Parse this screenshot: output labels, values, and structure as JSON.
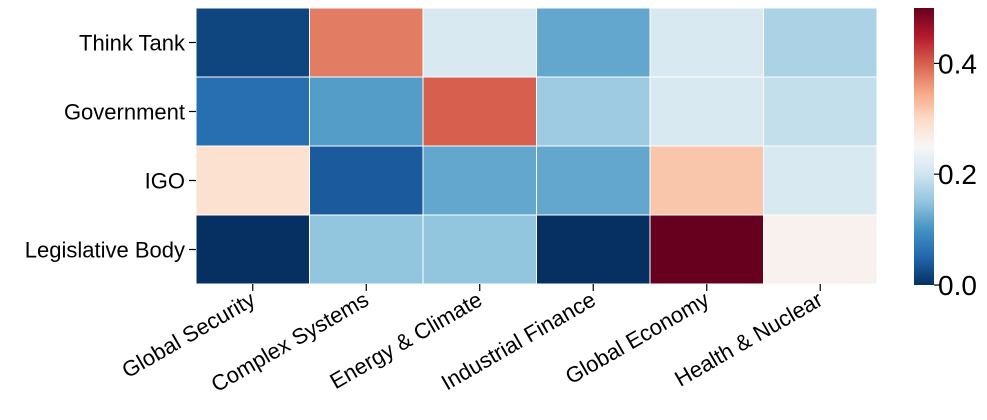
{
  "chart_data": {
    "type": "heatmap",
    "rows": [
      "Think Tank",
      "Government",
      "IGO",
      "Legislative Body"
    ],
    "columns": [
      "Global Security",
      "Complex Systems",
      "Energy & Climate",
      "Industrial Finance",
      "Global Economy",
      "Health & Nuclear"
    ],
    "values": [
      [
        0.02,
        0.38,
        0.21,
        0.12,
        0.21,
        0.17
      ],
      [
        0.06,
        0.11,
        0.4,
        0.16,
        0.21,
        0.19
      ],
      [
        0.29,
        0.04,
        0.12,
        0.12,
        0.32,
        0.21
      ],
      [
        0.0,
        0.15,
        0.15,
        0.0,
        0.5,
        0.26
      ]
    ],
    "colormap": "RdBu_r",
    "vmin": 0.0,
    "vmax": 0.5,
    "colorbar": {
      "ticks": [
        0.0,
        0.2,
        0.4
      ],
      "tick_labels": [
        "0.0",
        "0.2",
        "0.4"
      ]
    },
    "title": "",
    "xlabel": "",
    "ylabel": ""
  }
}
